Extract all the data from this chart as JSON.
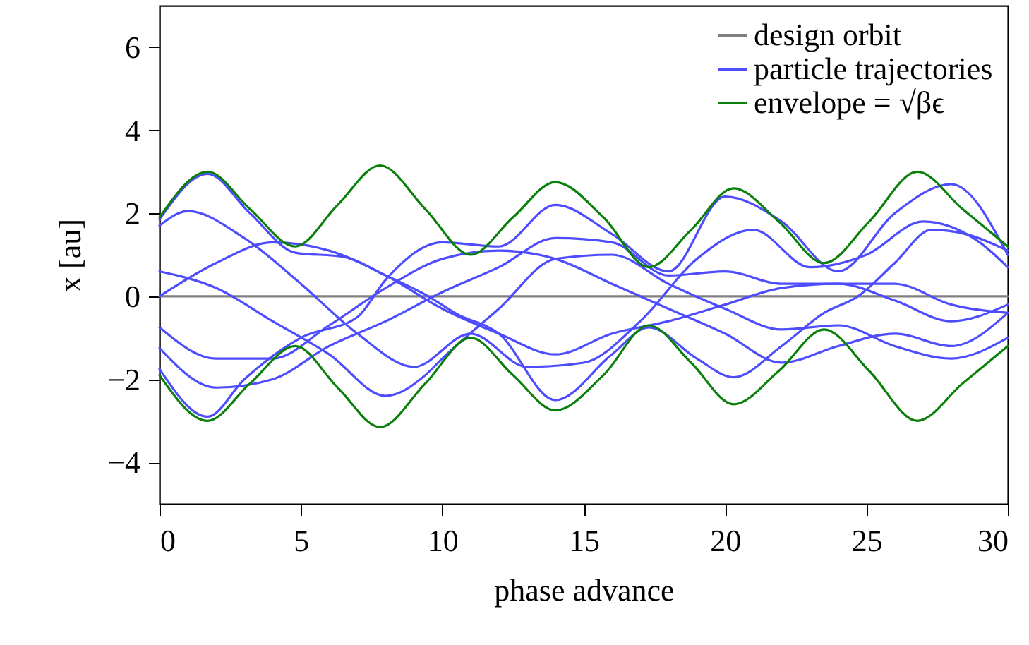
{
  "chart_data": {
    "type": "line",
    "xlabel": "phase advance",
    "ylabel": "x [au]",
    "xlim": [
      0,
      30
    ],
    "xticks": [
      0,
      5,
      10,
      15,
      20,
      25,
      30
    ],
    "ylim": [
      -5,
      7
    ],
    "yticks": [
      -4,
      -2,
      0,
      2,
      4,
      6
    ],
    "grid": false,
    "legend": "top right",
    "marker": "none",
    "line_style": "solid",
    "series": [
      {
        "name": "design orbit",
        "color": "#808080",
        "x": [
          0,
          30
        ],
        "values": [
          0,
          0
        ]
      },
      {
        "name": "particle trajectories",
        "color": "#4d4dff",
        "x": [
          0,
          1,
          3,
          5,
          7,
          9,
          11,
          13,
          15,
          17,
          19,
          21,
          23,
          25,
          27,
          29,
          30
        ],
        "values": [
          1.7,
          2.05,
          1.4,
          0.3,
          -0.9,
          -1.7,
          -0.9,
          -1.7,
          -1.6,
          -0.6,
          0.9,
          1.6,
          0.7,
          1.0,
          1.8,
          1.3,
          0.7
        ]
      },
      {
        "color": "#4d4dff",
        "x": [
          0,
          2,
          4,
          6,
          8,
          9.4,
          10,
          12,
          14,
          16,
          18,
          20,
          22,
          24,
          26,
          28,
          30
        ],
        "values": [
          0.6,
          0.2,
          -0.6,
          -1.4,
          -2.4,
          -1.9,
          -1.5,
          -0.3,
          0.9,
          1.0,
          0.3,
          -0.3,
          -0.8,
          -0.7,
          -1.2,
          -1.5,
          -1.0
        ]
      },
      {
        "color": "#4d4dff",
        "x": [
          0,
          2,
          4,
          6,
          8,
          10,
          12,
          14,
          16,
          18,
          20,
          22,
          24,
          26,
          28,
          30
        ],
        "values": [
          0,
          0.8,
          1.3,
          1.1,
          0.5,
          -0.3,
          -0.9,
          -1.4,
          -0.9,
          -0.6,
          -0.2,
          0.2,
          0.3,
          -0.1,
          -0.6,
          -0.2
        ]
      },
      {
        "color": "#4d4dff",
        "x": [
          0,
          2,
          4,
          6,
          8,
          10,
          12,
          14,
          16,
          18,
          20,
          22,
          24,
          26,
          28,
          30
        ],
        "values": [
          -0.75,
          -1.5,
          -1.5,
          -0.7,
          0.2,
          0.9,
          1.1,
          0.9,
          0.3,
          -0.3,
          -0.9,
          -1.6,
          -1.2,
          -0.9,
          -1.2,
          -0.4
        ]
      },
      {
        "color": "#4d4dff",
        "x": [
          0,
          2,
          4,
          6,
          8,
          10,
          12,
          14,
          16,
          18,
          20,
          22,
          24,
          26,
          28,
          30
        ],
        "values": [
          -1.25,
          -2.2,
          -2.0,
          -1.2,
          -0.6,
          0.1,
          0.7,
          1.4,
          1.3,
          0.5,
          0.6,
          0.3,
          0.3,
          0.3,
          -0.2,
          -0.4
        ]
      },
      {
        "color": "#4d4dff",
        "x": [
          0,
          1.7,
          3,
          5,
          7,
          8,
          10,
          12,
          14,
          16,
          18,
          20,
          22,
          24,
          26,
          28,
          30
        ],
        "values": [
          -1.75,
          -2.9,
          -2.0,
          -1.0,
          -0.5,
          0.4,
          1.3,
          1.2,
          2.2,
          1.5,
          0.6,
          2.4,
          1.8,
          0.6,
          2.0,
          2.7,
          1.0
        ]
      },
      {
        "color": "#4d4dff",
        "x": [
          0,
          1.7,
          3.2,
          4.8,
          6.5,
          8,
          9.5,
          10.5,
          12,
          14,
          16,
          17.3,
          19,
          20.3,
          22,
          23.5,
          24.7,
          26,
          27.3,
          28.5,
          30
        ],
        "values": [
          1.85,
          2.95,
          2.0,
          1.05,
          0.95,
          0.5,
          0,
          -0.42,
          -0.9,
          -2.5,
          -1.4,
          -0.75,
          -1.5,
          -1.95,
          -1.2,
          -0.4,
          0,
          0.8,
          1.6,
          1.5,
          1.1
        ]
      },
      {
        "name": "envelope = √βϵ",
        "color": "#0a800a",
        "x": [
          0,
          1.7,
          3.2,
          4.8,
          6.3,
          7.8,
          9.4,
          11,
          12.5,
          14,
          15.7,
          17.3,
          18.8,
          20.3,
          21.9,
          23.5,
          25.1,
          26.8,
          28.4,
          30
        ],
        "values": [
          1.9,
          3.0,
          2.1,
          1.2,
          2.2,
          3.15,
          2.1,
          1.0,
          1.9,
          2.75,
          1.9,
          0.7,
          1.6,
          2.6,
          1.8,
          0.8,
          1.8,
          3.0,
          2.1,
          1.2
        ]
      },
      {
        "color": "#0a800a",
        "x": [
          0,
          1.7,
          3.2,
          4.8,
          6.3,
          7.8,
          9.4,
          11,
          12.5,
          14,
          15.7,
          17.3,
          18.8,
          20.3,
          21.9,
          23.5,
          25.1,
          26.8,
          28.4,
          30
        ],
        "values": [
          -1.9,
          -3.0,
          -2.1,
          -1.2,
          -2.2,
          -3.15,
          -2.1,
          -1.0,
          -1.9,
          -2.75,
          -1.9,
          -0.7,
          -1.6,
          -2.6,
          -1.8,
          -0.8,
          -1.8,
          -3.0,
          -2.1,
          -1.2
        ]
      }
    ]
  }
}
